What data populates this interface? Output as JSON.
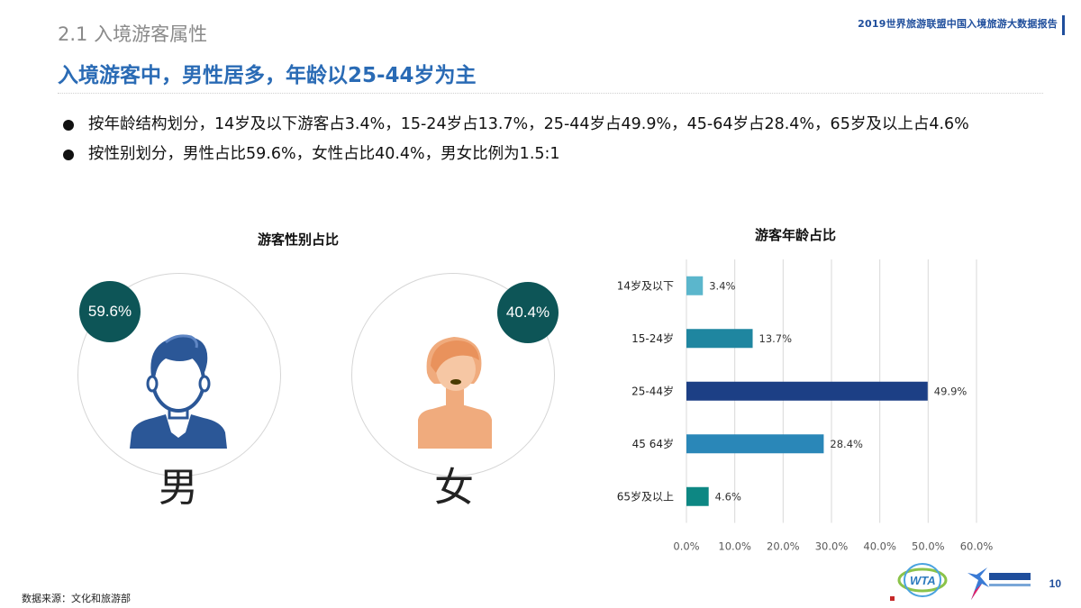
{
  "header": {
    "section": "2.1 入境游客属性",
    "report_title": "2019世界旅游联盟中国入境旅游大数据报告",
    "headline": "入境游客中，男性居多，年龄以25-44岁为主"
  },
  "bullets": [
    "按年龄结构划分，14岁及以下游客占3.4%，15-24岁占13.7%，25-44岁占49.9%，45-64岁占28.4%，65岁及以上占4.6%",
    "按性别划分，男性占比59.6%，女性占比40.4%，男女比例为1.5:1"
  ],
  "gender": {
    "title": "游客性别占比",
    "male_pct": "59.6%",
    "male_label": "男",
    "female_pct": "40.4%",
    "female_label": "女"
  },
  "footer": {
    "source": "数据来源：文化和旅游部",
    "page": "10"
  },
  "colors": {
    "headline": "#2a6bb5",
    "badge": "#0d5557",
    "male_icon": "#2b5797",
    "female_skin": "#f0ab7d"
  },
  "chart_data": [
    {
      "type": "pie",
      "title": "游客性别占比",
      "categories": [
        "男",
        "女"
      ],
      "values": [
        59.6,
        40.4
      ]
    },
    {
      "type": "bar",
      "orientation": "horizontal",
      "title": "游客年龄占比",
      "categories": [
        "14岁及以下",
        "15-24岁",
        "25-44岁",
        "45 64岁",
        "65岁及以上"
      ],
      "values": [
        3.4,
        13.7,
        49.9,
        28.4,
        4.6
      ],
      "value_labels": [
        "3.4%",
        "13.7%",
        "49.9%",
        "28.4%",
        "4.6%"
      ],
      "colors": [
        "#5bb6cc",
        "#1f86a0",
        "#1c3f85",
        "#2a87b8",
        "#0d8783"
      ],
      "xlim": [
        0,
        60
      ],
      "xticks": [
        "0.0%",
        "10.0%",
        "20.0%",
        "30.0%",
        "40.0%",
        "50.0%",
        "60.0%"
      ],
      "grid": true
    }
  ]
}
